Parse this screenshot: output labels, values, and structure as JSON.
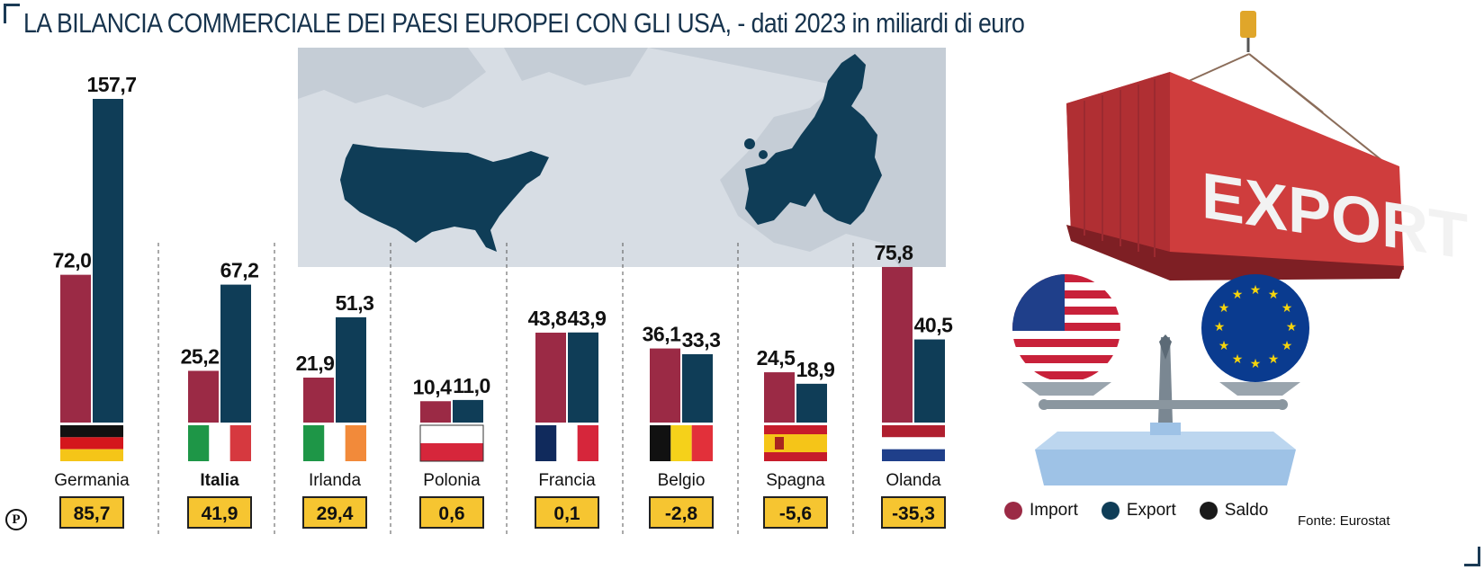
{
  "title": "LA BILANCIA COMMERCIALE DEI PAESI EUROPEI CON GLI USA, - dati 2023 in miliardi di euro",
  "colors": {
    "import": "#9b2a45",
    "export": "#0f3d57",
    "saldo": "#1a1a1a",
    "saldo_box": "#f6c531"
  },
  "chart_data": {
    "type": "bar",
    "unit": "miliardi di euro",
    "categories": [
      "Germania",
      "Italia",
      "Irlanda",
      "Polonia",
      "Francia",
      "Belgio",
      "Spagna",
      "Olanda"
    ],
    "series": [
      {
        "name": "Import",
        "values": [
          72.0,
          25.2,
          21.9,
          10.4,
          43.8,
          36.1,
          24.5,
          75.8
        ]
      },
      {
        "name": "Export",
        "values": [
          157.7,
          67.2,
          51.3,
          11.0,
          43.9,
          33.3,
          18.9,
          40.5
        ]
      }
    ],
    "value_labels": {
      "import": [
        "72,0",
        "25,2",
        "21,9",
        "10,4",
        "43,8",
        "36,1",
        "24,5",
        "75,8"
      ],
      "export": [
        "157,7",
        "67,2",
        "51,3",
        "11,0",
        "43,9",
        "33,3",
        "18,9",
        "40,5"
      ]
    },
    "saldo": [
      85.7,
      41.9,
      29.4,
      0.6,
      0.1,
      -2.8,
      -5.6,
      -35.3
    ],
    "saldo_labels": [
      "85,7",
      "41,9",
      "29,4",
      "0,6",
      "0,1",
      "-2,8",
      "-5,6",
      "-35,3"
    ],
    "highlight": "Italia",
    "flags": [
      "germany",
      "italy",
      "ireland",
      "poland",
      "france",
      "belgium",
      "spain",
      "netherlands"
    ]
  },
  "legend": {
    "import": "Import",
    "export": "Export",
    "saldo": "Saldo"
  },
  "source": "Fonte: Eurostat",
  "illustration": {
    "container_text": "EXPORT",
    "icons": [
      "usa-flag-icon",
      "eu-flag-icon",
      "balance-scale-icon",
      "shipping-container-icon",
      "map-icon"
    ]
  },
  "logo_letter": "P"
}
